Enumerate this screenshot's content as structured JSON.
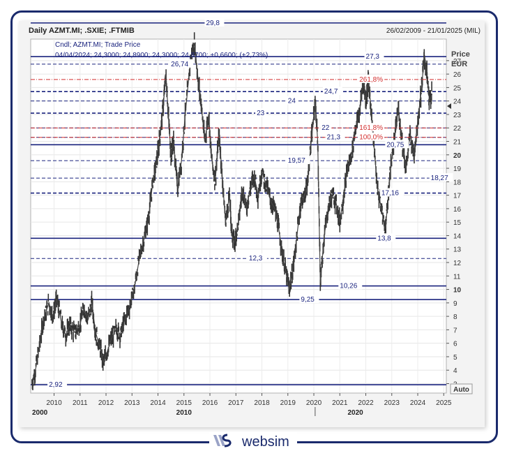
{
  "header": {
    "title": "Daily AZMT.MI; .SXIE; .FTMIB",
    "date_range": "26/02/2009 - 21/01/2025 (MIL)"
  },
  "legend": {
    "line1": "Cndl; AZMT.MI; Trade Price",
    "line2": "04/04/2024; 24,3000; 24,8900; 24,3000; 24,8700; +0,6600; (+2,73%)"
  },
  "axis": {
    "price_label": "Price",
    "currency_label": "EUR",
    "auto_button": "Auto"
  },
  "brand": {
    "name": "websim",
    "colors": {
      "navy": "#1a2a6c",
      "accent": "#9aa3c7"
    }
  },
  "chart_data": {
    "type": "candlestick",
    "title": "Daily AZMT.MI; .SXIE; .FTMIB",
    "ylabel": "Price EUR",
    "ylim": [
      2.3,
      28.6
    ],
    "xlim": [
      2009.1,
      2025.1
    ],
    "y_ticks": [
      3,
      4,
      5,
      6,
      7,
      8,
      9,
      10,
      11,
      12,
      13,
      14,
      15,
      16,
      17,
      18,
      19,
      20,
      21,
      22,
      23,
      24,
      25,
      26,
      27
    ],
    "y_major_ticks": [
      10,
      20
    ],
    "x_ticks": [
      {
        "label": "2010",
        "value": 2010
      },
      {
        "label": "2011",
        "value": 2011
      },
      {
        "label": "2012",
        "value": 2012
      },
      {
        "label": "2013",
        "value": 2013
      },
      {
        "label": "2014",
        "value": 2014
      },
      {
        "label": "2015",
        "value": 2015
      },
      {
        "label": "2016",
        "value": 2016
      },
      {
        "label": "2017",
        "value": 2017
      },
      {
        "label": "2018",
        "value": 2018
      },
      {
        "label": "2019",
        "value": 2019
      },
      {
        "label": "2020",
        "value": 2020
      },
      {
        "label": "2021",
        "value": 2021
      },
      {
        "label": "2022",
        "value": 2022
      },
      {
        "label": "2023",
        "value": 2023
      },
      {
        "label": "2024",
        "value": 2024
      },
      {
        "label": "2025",
        "value": 2025
      }
    ],
    "decade_labels": [
      {
        "label": "2000",
        "value": 2009.1
      },
      {
        "label": "2010",
        "value": 2015
      },
      {
        "label": "2020",
        "value": 2021.5
      }
    ],
    "price_path": [
      [
        2009.15,
        3.0
      ],
      [
        2009.3,
        4.2
      ],
      [
        2009.45,
        6.0
      ],
      [
        2009.6,
        7.8
      ],
      [
        2009.8,
        9.0
      ],
      [
        2009.95,
        8.0
      ],
      [
        2010.1,
        9.3
      ],
      [
        2010.3,
        7.4
      ],
      [
        2010.45,
        6.6
      ],
      [
        2010.6,
        7.3
      ],
      [
        2010.8,
        6.8
      ],
      [
        2011.0,
        7.4
      ],
      [
        2011.15,
        8.6
      ],
      [
        2011.3,
        7.8
      ],
      [
        2011.45,
        9.0
      ],
      [
        2011.6,
        6.8
      ],
      [
        2011.75,
        5.8
      ],
      [
        2011.9,
        4.6
      ],
      [
        2012.05,
        5.4
      ],
      [
        2012.2,
        6.3
      ],
      [
        2012.4,
        7.1
      ],
      [
        2012.55,
        6.6
      ],
      [
        2012.7,
        7.6
      ],
      [
        2012.9,
        8.7
      ],
      [
        2013.1,
        10.2
      ],
      [
        2013.3,
        12.5
      ],
      [
        2013.5,
        14.0
      ],
      [
        2013.65,
        15.5
      ],
      [
        2013.8,
        18.0
      ],
      [
        2013.95,
        19.5
      ],
      [
        2014.05,
        21.0
      ],
      [
        2014.2,
        23.5
      ],
      [
        2014.3,
        26.0
      ],
      [
        2014.4,
        23.0
      ],
      [
        2014.5,
        20.0
      ],
      [
        2014.6,
        21.0
      ],
      [
        2014.75,
        17.5
      ],
      [
        2014.9,
        19.5
      ],
      [
        2015.05,
        23.0
      ],
      [
        2015.25,
        27.0
      ],
      [
        2015.4,
        28.3
      ],
      [
        2015.55,
        25.5
      ],
      [
        2015.65,
        24.0
      ],
      [
        2015.8,
        21.0
      ],
      [
        2015.95,
        23.0
      ],
      [
        2016.05,
        20.0
      ],
      [
        2016.2,
        18.0
      ],
      [
        2016.35,
        21.5
      ],
      [
        2016.45,
        19.0
      ],
      [
        2016.6,
        15.0
      ],
      [
        2016.75,
        17.0
      ],
      [
        2016.85,
        14.0
      ],
      [
        2016.95,
        13.5
      ],
      [
        2017.1,
        15.0
      ],
      [
        2017.25,
        17.5
      ],
      [
        2017.4,
        16.0
      ],
      [
        2017.55,
        17.5
      ],
      [
        2017.7,
        18.5
      ],
      [
        2017.85,
        17.0
      ],
      [
        2018.0,
        18.8
      ],
      [
        2018.2,
        17.5
      ],
      [
        2018.35,
        16.5
      ],
      [
        2018.5,
        16.0
      ],
      [
        2018.65,
        14.5
      ],
      [
        2018.8,
        12.5
      ],
      [
        2018.95,
        11.0
      ],
      [
        2019.05,
        10.0
      ],
      [
        2019.2,
        11.5
      ],
      [
        2019.35,
        14.0
      ],
      [
        2019.5,
        16.5
      ],
      [
        2019.65,
        17.0
      ],
      [
        2019.75,
        18.0
      ],
      [
        2019.9,
        21.0
      ],
      [
        2020.05,
        24.0
      ],
      [
        2020.15,
        21.0
      ],
      [
        2020.25,
        10.5
      ],
      [
        2020.4,
        14.0
      ],
      [
        2020.55,
        16.0
      ],
      [
        2020.7,
        17.0
      ],
      [
        2020.85,
        16.5
      ],
      [
        2021.0,
        15.0
      ],
      [
        2021.15,
        17.0
      ],
      [
        2021.3,
        19.0
      ],
      [
        2021.45,
        20.0
      ],
      [
        2021.6,
        22.0
      ],
      [
        2021.75,
        23.0
      ],
      [
        2021.9,
        25.5
      ],
      [
        2022.0,
        24.0
      ],
      [
        2022.1,
        25.5
      ],
      [
        2022.2,
        23.5
      ],
      [
        2022.3,
        21.0
      ],
      [
        2022.45,
        17.5
      ],
      [
        2022.6,
        16.0
      ],
      [
        2022.75,
        14.5
      ],
      [
        2022.85,
        16.5
      ],
      [
        2022.95,
        19.0
      ],
      [
        2023.1,
        21.0
      ],
      [
        2023.25,
        23.5
      ],
      [
        2023.4,
        21.0
      ],
      [
        2023.55,
        19.0
      ],
      [
        2023.7,
        21.5
      ],
      [
        2023.85,
        20.0
      ],
      [
        2024.0,
        22.5
      ],
      [
        2024.15,
        25.0
      ],
      [
        2024.25,
        27.3
      ],
      [
        2024.35,
        26.0
      ],
      [
        2024.45,
        24.0
      ],
      [
        2024.55,
        24.5
      ]
    ],
    "lines": [
      {
        "label": "29,8",
        "value": 29.8,
        "style": "solid",
        "color": "#1a237e"
      },
      {
        "label": "27,3",
        "value": 27.3,
        "style": "solid",
        "color": "#1a237e"
      },
      {
        "label": "26,74",
        "value": 26.74,
        "style": "dash",
        "color": "#1a237e"
      },
      {
        "label": "24,7",
        "value": 24.7,
        "style": "dashbold",
        "color": "#1a237e"
      },
      {
        "label": "24",
        "value": 24.0,
        "style": "dash",
        "color": "#1a237e"
      },
      {
        "label": "23",
        "value": 23.1,
        "style": "dashbold",
        "color": "#1a237e"
      },
      {
        "label": "22",
        "value": 22.0,
        "style": "dash",
        "color": "#1a237e"
      },
      {
        "label": "21,3",
        "value": 21.3,
        "style": "dash",
        "color": "#1a237e"
      },
      {
        "label": "20,75",
        "value": 20.75,
        "style": "solid",
        "color": "#1a237e"
      },
      {
        "label": "19,57",
        "value": 19.57,
        "style": "dash",
        "color": "#1a237e"
      },
      {
        "label": "18,27",
        "value": 18.27,
        "style": "dash",
        "color": "#1a237e"
      },
      {
        "label": "17,16",
        "value": 17.16,
        "style": "dashbold",
        "color": "#1a237e"
      },
      {
        "label": "13,8",
        "value": 13.8,
        "style": "solid",
        "color": "#1a237e"
      },
      {
        "label": "12,3",
        "value": 12.3,
        "style": "dash",
        "color": "#1a237e"
      },
      {
        "label": "10,26",
        "value": 10.26,
        "style": "solid",
        "color": "#1a237e"
      },
      {
        "label": "9,25",
        "value": 9.25,
        "style": "solid",
        "color": "#1a237e"
      },
      {
        "label": "2,92",
        "value": 2.92,
        "style": "solid",
        "color": "#1a237e"
      }
    ],
    "fib_lines": [
      {
        "label": "261,8%",
        "value": 25.6
      },
      {
        "label": "161,8%",
        "value": 22.0
      },
      {
        "label": "100,0%",
        "value": 21.3
      }
    ]
  }
}
